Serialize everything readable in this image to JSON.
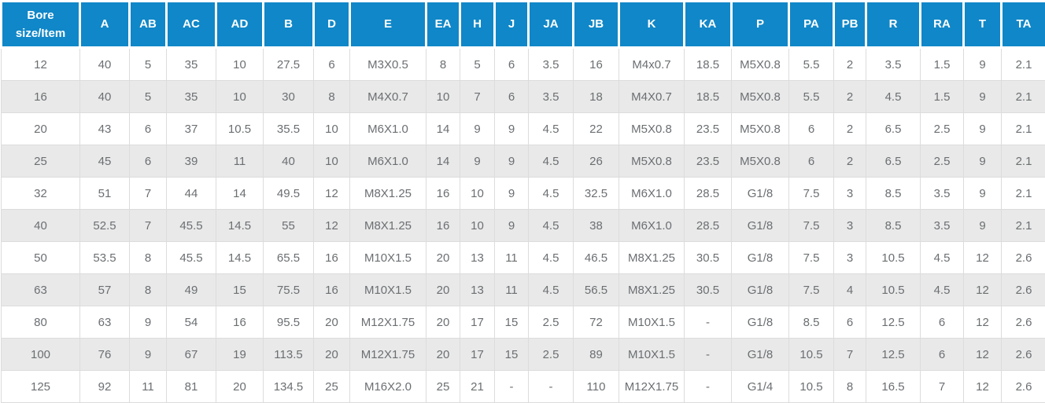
{
  "chart_data": {
    "type": "table",
    "columns": [
      "Bore size/Item",
      "A",
      "AB",
      "AC",
      "AD",
      "B",
      "D",
      "E",
      "EA",
      "H",
      "J",
      "JA",
      "JB",
      "K",
      "KA",
      "P",
      "PA",
      "PB",
      "R",
      "RA",
      "T",
      "TA"
    ],
    "rows": [
      [
        "12",
        "40",
        "5",
        "35",
        "10",
        "27.5",
        "6",
        "M3X0.5",
        "8",
        "5",
        "6",
        "3.5",
        "16",
        "M4x0.7",
        "18.5",
        "M5X0.8",
        "5.5",
        "2",
        "3.5",
        "1.5",
        "9",
        "2.1"
      ],
      [
        "16",
        "40",
        "5",
        "35",
        "10",
        "30",
        "8",
        "M4X0.7",
        "10",
        "7",
        "6",
        "3.5",
        "18",
        "M4X0.7",
        "18.5",
        "M5X0.8",
        "5.5",
        "2",
        "4.5",
        "1.5",
        "9",
        "2.1"
      ],
      [
        "20",
        "43",
        "6",
        "37",
        "10.5",
        "35.5",
        "10",
        "M6X1.0",
        "14",
        "9",
        "9",
        "4.5",
        "22",
        "M5X0.8",
        "23.5",
        "M5X0.8",
        "6",
        "2",
        "6.5",
        "2.5",
        "9",
        "2.1"
      ],
      [
        "25",
        "45",
        "6",
        "39",
        "11",
        "40",
        "10",
        "M6X1.0",
        "14",
        "9",
        "9",
        "4.5",
        "26",
        "M5X0.8",
        "23.5",
        "M5X0.8",
        "6",
        "2",
        "6.5",
        "2.5",
        "9",
        "2.1"
      ],
      [
        "32",
        "51",
        "7",
        "44",
        "14",
        "49.5",
        "12",
        "M8X1.25",
        "16",
        "10",
        "9",
        "4.5",
        "32.5",
        "M6X1.0",
        "28.5",
        "G1/8",
        "7.5",
        "3",
        "8.5",
        "3.5",
        "9",
        "2.1"
      ],
      [
        "40",
        "52.5",
        "7",
        "45.5",
        "14.5",
        "55",
        "12",
        "M8X1.25",
        "16",
        "10",
        "9",
        "4.5",
        "38",
        "M6X1.0",
        "28.5",
        "G1/8",
        "7.5",
        "3",
        "8.5",
        "3.5",
        "9",
        "2.1"
      ],
      [
        "50",
        "53.5",
        "8",
        "45.5",
        "14.5",
        "65.5",
        "16",
        "M10X1.5",
        "20",
        "13",
        "11",
        "4.5",
        "46.5",
        "M8X1.25",
        "30.5",
        "G1/8",
        "7.5",
        "3",
        "10.5",
        "4.5",
        "12",
        "2.6"
      ],
      [
        "63",
        "57",
        "8",
        "49",
        "15",
        "75.5",
        "16",
        "M10X1.5",
        "20",
        "13",
        "11",
        "4.5",
        "56.5",
        "M8X1.25",
        "30.5",
        "G1/8",
        "7.5",
        "4",
        "10.5",
        "4.5",
        "12",
        "2.6"
      ],
      [
        "80",
        "63",
        "9",
        "54",
        "16",
        "95.5",
        "20",
        "M12X1.75",
        "20",
        "17",
        "15",
        "2.5",
        "72",
        "M10X1.5",
        "-",
        "G1/8",
        "8.5",
        "6",
        "12.5",
        "6",
        "12",
        "2.6"
      ],
      [
        "100",
        "76",
        "9",
        "67",
        "19",
        "113.5",
        "20",
        "M12X1.75",
        "20",
        "17",
        "15",
        "2.5",
        "89",
        "M10X1.5",
        "-",
        "G1/8",
        "10.5",
        "7",
        "12.5",
        "6",
        "12",
        "2.6"
      ],
      [
        "125",
        "92",
        "11",
        "81",
        "20",
        "134.5",
        "25",
        "M16X2.0",
        "25",
        "21",
        "-",
        "-",
        "110",
        "M12X1.75",
        "-",
        "G1/4",
        "10.5",
        "8",
        "16.5",
        "7",
        "12",
        "2.6"
      ]
    ]
  },
  "colors": {
    "header_bg": "#1087c8",
    "header_text": "#ffffff",
    "row_alt_bg": "#e9e9e9",
    "body_text": "#6b6f72",
    "border": "#dcdcdc"
  }
}
